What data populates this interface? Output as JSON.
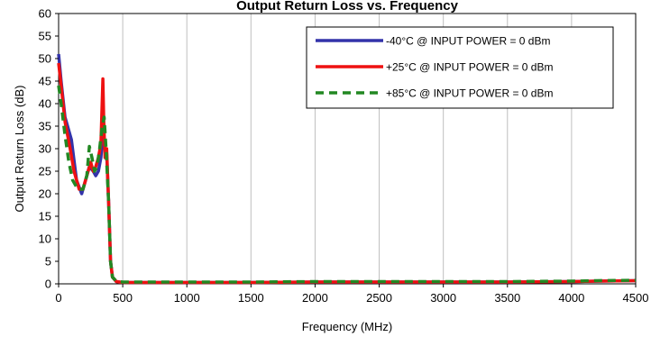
{
  "chart_data": {
    "type": "line",
    "title": "Output Return Loss vs. Frequency",
    "xlabel": "Frequency (MHz)",
    "ylabel": "Output Return  Loss (dB)",
    "xlim": [
      0,
      4500
    ],
    "ylim": [
      0,
      60
    ],
    "xticks": [
      0,
      500,
      1000,
      1500,
      2000,
      2500,
      3000,
      3500,
      4000,
      4500
    ],
    "yticks": [
      0,
      5,
      10,
      15,
      20,
      25,
      30,
      35,
      40,
      45,
      50,
      55,
      60
    ],
    "grid": "vertical",
    "legend_position": "top-right",
    "series": [
      {
        "name": "-40°C @ INPUT POWER = 0 dBm",
        "color": "#3333aa",
        "style": "solid",
        "x": [
          0,
          20,
          50,
          100,
          140,
          180,
          210,
          240,
          270,
          290,
          310,
          330,
          345,
          360,
          375,
          390,
          405,
          420,
          450,
          500,
          1000,
          1500,
          2000,
          2500,
          3000,
          3500,
          4000,
          4200,
          4500
        ],
        "y": [
          51,
          45,
          37,
          32,
          23,
          20,
          23,
          26,
          25,
          24,
          25,
          28,
          33,
          30,
          29,
          18,
          5,
          1.5,
          0.5,
          0.3,
          0.3,
          0.3,
          0.4,
          0.4,
          0.4,
          0.4,
          0.5,
          0.6,
          0.7
        ]
      },
      {
        "name": "+25°C @ INPUT POWER = 0 dBm",
        "color": "#ee1111",
        "style": "solid",
        "x": [
          0,
          20,
          50,
          90,
          120,
          160,
          190,
          220,
          250,
          270,
          290,
          310,
          330,
          345,
          352,
          362,
          375,
          390,
          405,
          420,
          450,
          500,
          1000,
          1500,
          2000,
          2500,
          3000,
          3500,
          4000,
          4200,
          4500
        ],
        "y": [
          49,
          44,
          36,
          30,
          25,
          21,
          21,
          24,
          27,
          25,
          26,
          28,
          31,
          45.5,
          36,
          28,
          30,
          18,
          5,
          1.5,
          0.5,
          0.3,
          0.3,
          0.3,
          0.4,
          0.4,
          0.4,
          0.4,
          0.5,
          0.6,
          0.7
        ]
      },
      {
        "name": "+85°C @ INPUT POWER = 0 dBm",
        "color": "#228822",
        "style": "dashed",
        "x": [
          0,
          20,
          50,
          80,
          110,
          150,
          190,
          220,
          240,
          260,
          280,
          300,
          320,
          340,
          355,
          370,
          390,
          405,
          420,
          450,
          500,
          1000,
          1500,
          2000,
          2500,
          3000,
          3500,
          4000,
          4200,
          4500
        ],
        "y": [
          44,
          40,
          33,
          27,
          23,
          21,
          21,
          24,
          30.5,
          28,
          25,
          26,
          30,
          35,
          37,
          30,
          18,
          5,
          1.5,
          0.6,
          0.4,
          0.4,
          0.4,
          0.5,
          0.5,
          0.5,
          0.5,
          0.6,
          0.7,
          0.8
        ]
      }
    ]
  }
}
